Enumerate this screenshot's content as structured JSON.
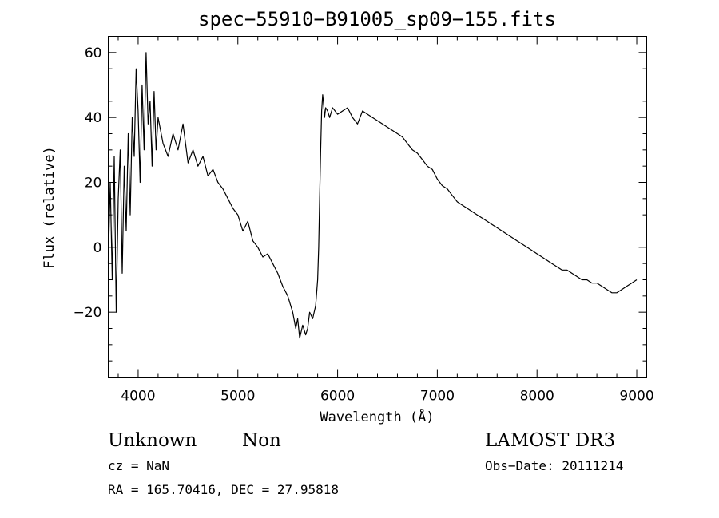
{
  "chart_data": {
    "type": "line",
    "title": "spec−55910−B91005_sp09−155.fits",
    "xlabel": "Wavelength (Å)",
    "ylabel": "Flux (relative)",
    "xlim": [
      3700,
      9100
    ],
    "ylim": [
      -40,
      65
    ],
    "x_ticks": [
      {
        "value": 4000,
        "label": "4000"
      },
      {
        "value": 5000,
        "label": "5000"
      },
      {
        "value": 6000,
        "label": "6000"
      },
      {
        "value": 7000,
        "label": "7000"
      },
      {
        "value": 8000,
        "label": "8000"
      },
      {
        "value": 9000,
        "label": "9000"
      }
    ],
    "y_ticks": [
      {
        "value": 60,
        "label": "60"
      },
      {
        "value": 40,
        "label": "40"
      },
      {
        "value": 20,
        "label": "20"
      },
      {
        "value": 0,
        "label": "0"
      },
      {
        "value": -20,
        "label": "−20"
      }
    ],
    "series": [
      {
        "color": "#000000",
        "x": [
          3700,
          3720,
          3740,
          3760,
          3780,
          3800,
          3820,
          3840,
          3860,
          3880,
          3900,
          3920,
          3940,
          3960,
          3980,
          4000,
          4020,
          4040,
          4060,
          4080,
          4100,
          4120,
          4140,
          4160,
          4180,
          4200,
          4250,
          4300,
          4350,
          4400,
          4450,
          4500,
          4550,
          4600,
          4650,
          4700,
          4750,
          4800,
          4850,
          4900,
          4950,
          5000,
          5050,
          5100,
          5150,
          5200,
          5250,
          5300,
          5350,
          5400,
          5450,
          5500,
          5550,
          5580,
          5600,
          5620,
          5650,
          5680,
          5700,
          5720,
          5750,
          5780,
          5800,
          5810,
          5820,
          5830,
          5840,
          5850,
          5860,
          5870,
          5880,
          5900,
          5920,
          5950,
          6000,
          6050,
          6100,
          6150,
          6200,
          6250,
          6300,
          6350,
          6400,
          6450,
          6500,
          6550,
          6600,
          6650,
          6700,
          6750,
          6800,
          6850,
          6900,
          6950,
          7000,
          7050,
          7100,
          7150,
          7200,
          7250,
          7300,
          7350,
          7400,
          7450,
          7500,
          7550,
          7600,
          7650,
          7700,
          7750,
          7800,
          7850,
          7900,
          7950,
          8000,
          8050,
          8100,
          8150,
          8200,
          8250,
          8300,
          8350,
          8400,
          8450,
          8500,
          8550,
          8600,
          8650,
          8700,
          8750,
          8800,
          8850,
          8900,
          8950,
          9000
        ],
        "y": [
          -5,
          20,
          -10,
          28,
          -20,
          15,
          30,
          -8,
          25,
          5,
          35,
          10,
          40,
          28,
          55,
          42,
          20,
          50,
          30,
          60,
          38,
          45,
          25,
          48,
          30,
          40,
          32,
          28,
          35,
          30,
          38,
          26,
          30,
          25,
          28,
          22,
          24,
          20,
          18,
          15,
          12,
          10,
          5,
          8,
          2,
          0,
          -3,
          -2,
          -5,
          -8,
          -12,
          -15,
          -20,
          -25,
          -22,
          -28,
          -24,
          -27,
          -25,
          -20,
          -22,
          -18,
          -10,
          0,
          15,
          30,
          42,
          47,
          44,
          40,
          43,
          42,
          40,
          43,
          41,
          42,
          43,
          40,
          38,
          42,
          41,
          40,
          39,
          38,
          37,
          36,
          35,
          34,
          32,
          30,
          29,
          27,
          25,
          24,
          21,
          19,
          18,
          16,
          14,
          13,
          12,
          11,
          10,
          9,
          8,
          7,
          6,
          5,
          4,
          3,
          2,
          1,
          0,
          -1,
          -2,
          -3,
          -4,
          -5,
          -6,
          -7,
          -7,
          -8,
          -9,
          -10,
          -10,
          -11,
          -11,
          -12,
          -13,
          -14,
          -14,
          -13,
          -12,
          -11,
          -10
        ]
      }
    ]
  },
  "footer": {
    "object_class": "Unknown",
    "object_subclass": "Non",
    "redshift": "cz = NaN",
    "coords": "RA = 165.70416, DEC =  27.95818",
    "survey": "LAMOST DR3",
    "obs_date": "Obs−Date: 20111214"
  }
}
